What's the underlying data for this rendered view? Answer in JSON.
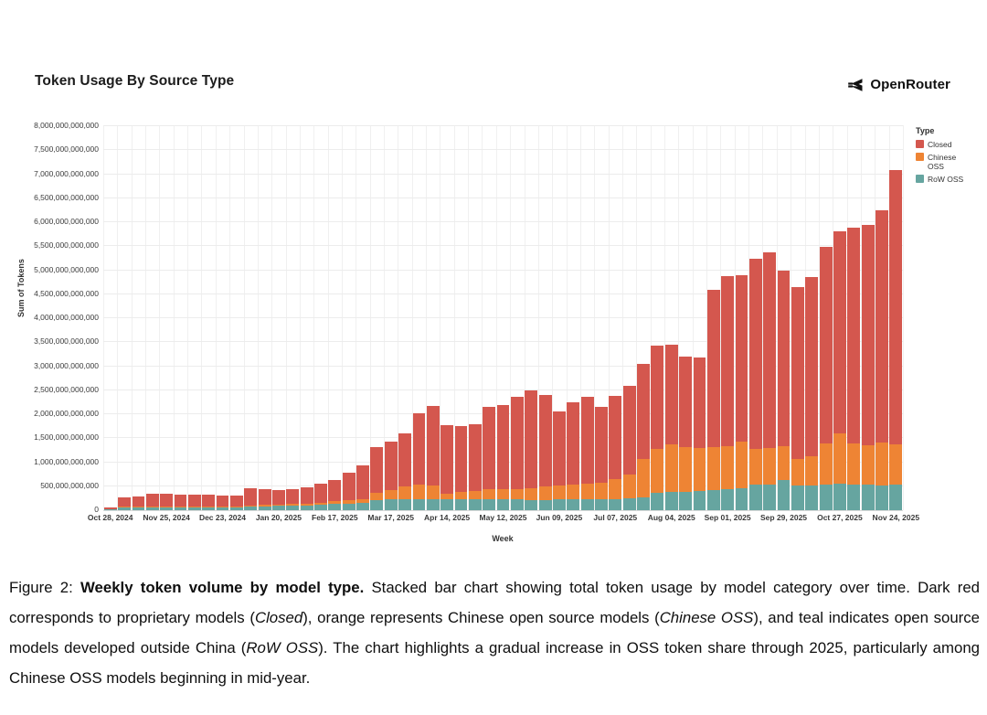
{
  "header": {
    "title": "Token Usage By Source Type",
    "brand": "OpenRouter"
  },
  "chart_data": {
    "type": "bar",
    "subtype": "stacked",
    "title": "Token Usage By Source Type",
    "xlabel": "Week",
    "ylabel": "Sum of Tokens",
    "values_unit": "billions of tokens",
    "ylim_billions": [
      0,
      8000
    ],
    "ytick_step_billions": 500,
    "grid": true,
    "legend_title": "Type",
    "legend_position": "right",
    "legend_order_top_to_bottom": [
      "Closed",
      "Chinese OSS",
      "RoW OSS"
    ],
    "x_tick_every": 4,
    "categories": [
      "Oct 28, 2024",
      "Nov 04, 2024",
      "Nov 11, 2024",
      "Nov 18, 2024",
      "Nov 25, 2024",
      "Dec 02, 2024",
      "Dec 09, 2024",
      "Dec 16, 2024",
      "Dec 23, 2024",
      "Dec 30, 2024",
      "Jan 06, 2025",
      "Jan 13, 2025",
      "Jan 20, 2025",
      "Jan 27, 2025",
      "Feb 03, 2025",
      "Feb 10, 2025",
      "Feb 17, 2025",
      "Feb 24, 2025",
      "Mar 03, 2025",
      "Mar 10, 2025",
      "Mar 17, 2025",
      "Mar 24, 2025",
      "Mar 31, 2025",
      "Apr 07, 2025",
      "Apr 14, 2025",
      "Apr 21, 2025",
      "Apr 28, 2025",
      "May 05, 2025",
      "May 12, 2025",
      "May 19, 2025",
      "May 26, 2025",
      "Jun 02, 2025",
      "Jun 09, 2025",
      "Jun 16, 2025",
      "Jun 23, 2025",
      "Jun 30, 2025",
      "Jul 07, 2025",
      "Jul 14, 2025",
      "Jul 21, 2025",
      "Jul 28, 2025",
      "Aug 04, 2025",
      "Aug 11, 2025",
      "Aug 18, 2025",
      "Aug 25, 2025",
      "Sep 01, 2025",
      "Sep 08, 2025",
      "Sep 15, 2025",
      "Sep 22, 2025",
      "Sep 29, 2025",
      "Oct 06, 2025",
      "Oct 13, 2025",
      "Oct 20, 2025",
      "Oct 27, 2025",
      "Nov 03, 2025",
      "Nov 10, 2025",
      "Nov 17, 2025",
      "Nov 24, 2025"
    ],
    "series": [
      {
        "name": "RoW OSS",
        "color": "#66a5a0",
        "values": [
          10,
          65,
          70,
          70,
          70,
          70,
          70,
          70,
          70,
          75,
          80,
          85,
          90,
          95,
          100,
          110,
          125,
          135,
          150,
          210,
          225,
          230,
          230,
          230,
          220,
          220,
          225,
          225,
          220,
          230,
          215,
          215,
          220,
          220,
          225,
          220,
          225,
          240,
          270,
          360,
          380,
          390,
          405,
          415,
          435,
          460,
          525,
          535,
          630,
          510,
          510,
          535,
          560,
          530,
          525,
          510,
          525
        ]
      },
      {
        "name": "Chinese OSS",
        "color": "#ee8434",
        "values": [
          0,
          5,
          5,
          5,
          5,
          5,
          5,
          10,
          10,
          10,
          15,
          25,
          30,
          35,
          40,
          45,
          60,
          70,
          80,
          160,
          190,
          260,
          305,
          290,
          130,
          165,
          170,
          205,
          210,
          215,
          245,
          280,
          290,
          305,
          320,
          355,
          425,
          510,
          805,
          915,
          985,
          930,
          900,
          895,
          900,
          960,
          760,
          770,
          700,
          565,
          610,
          865,
          1040,
          865,
          825,
          900,
          855
        ]
      },
      {
        "name": "Closed",
        "color": "#d4574e",
        "values": [
          40,
          195,
          215,
          260,
          270,
          255,
          240,
          240,
          220,
          225,
          355,
          335,
          295,
          300,
          340,
          400,
          450,
          575,
          695,
          950,
          1015,
          1115,
          1475,
          1650,
          1415,
          1365,
          1405,
          1715,
          1760,
          1910,
          2040,
          1905,
          1555,
          1715,
          1810,
          1570,
          1730,
          1850,
          1975,
          2145,
          2090,
          1880,
          1885,
          3280,
          3540,
          3480,
          3945,
          4060,
          3670,
          3565,
          3735,
          4090,
          4210,
          4495,
          4600,
          4830,
          5700
        ]
      }
    ]
  },
  "caption": {
    "segments": [
      {
        "text": "Figure 2: ",
        "style": "normal"
      },
      {
        "text": "Weekly token volume by model type.",
        "style": "bold"
      },
      {
        "text": " Stacked bar chart showing total token usage by model category over time. Dark red corresponds to proprietary models (",
        "style": "normal"
      },
      {
        "text": "Closed",
        "style": "italic"
      },
      {
        "text": "), orange represents Chinese open source models (",
        "style": "normal"
      },
      {
        "text": "Chinese OSS",
        "style": "italic"
      },
      {
        "text": "), and teal indicates open source models developed outside China (",
        "style": "normal"
      },
      {
        "text": "RoW OSS",
        "style": "italic"
      },
      {
        "text": "). The chart highlights a gradual increase in OSS token share through 2025, particularly among Chinese OSS models beginning in mid-year.",
        "style": "normal"
      }
    ]
  }
}
